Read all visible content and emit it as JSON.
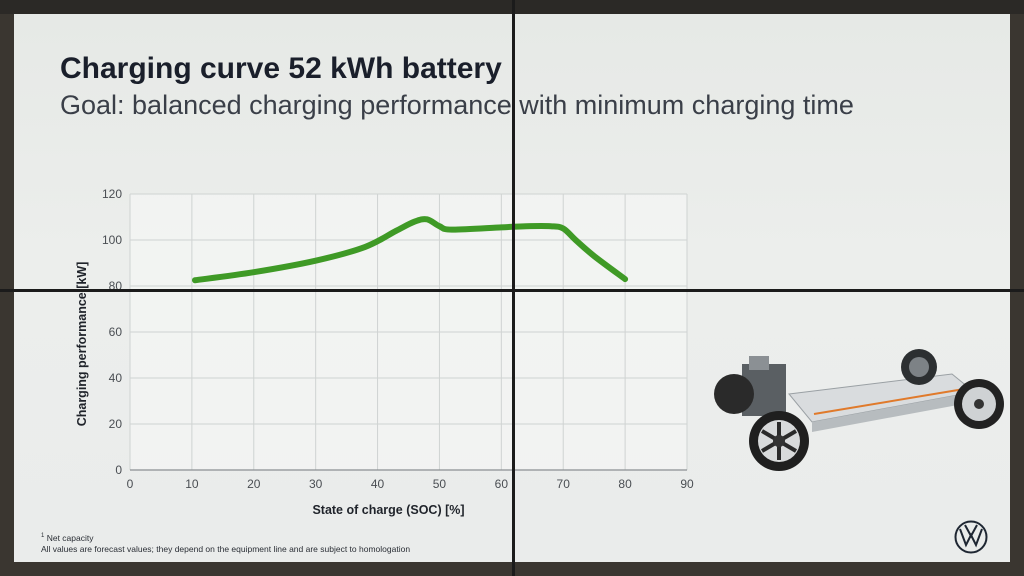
{
  "title": "Charging curve 52 kWh battery",
  "subtitle": "Goal: balanced charging performance with minimum charging time",
  "footnote": {
    "line1_sup": "1",
    "line1_text": " Net capacity",
    "line2": "All values are forecast values; they depend on the equipment line and are subject to homologation"
  },
  "colors": {
    "curve": "#3f9a26",
    "grid": "#cfd3d2",
    "text": "#2a2e35"
  },
  "chart_data": {
    "type": "line",
    "title": "Charging curve 52 kWh battery",
    "xlabel": "State of charge (SOC) [%]",
    "ylabel": "Charging performance [kW]",
    "xlim": [
      0,
      90
    ],
    "ylim": [
      0,
      120
    ],
    "x_ticks": [
      0,
      10,
      20,
      30,
      40,
      50,
      60,
      70,
      80,
      90
    ],
    "y_ticks": [
      0,
      20,
      40,
      60,
      80,
      100,
      120
    ],
    "grid": true,
    "series": [
      {
        "x": [
          10.5,
          20,
          30,
          38,
          43,
          46,
          48,
          50,
          52,
          60,
          64,
          68,
          70,
          72,
          75,
          80
        ],
        "values": [
          82.5,
          86,
          91,
          97,
          104,
          108,
          109,
          106,
          104.5,
          105.5,
          106,
          106,
          105,
          100,
          93,
          83
        ]
      }
    ]
  },
  "icons": {
    "logo": "vw-logo-icon",
    "car": "ev-chassis-image"
  }
}
